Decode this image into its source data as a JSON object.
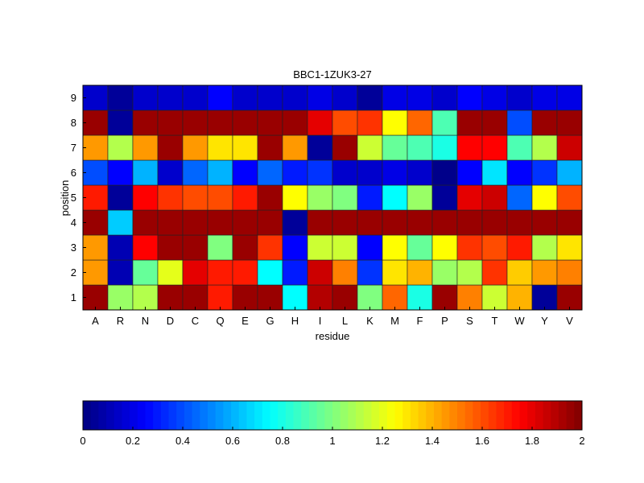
{
  "chart_data": {
    "type": "heatmap",
    "title": "BBC1-1ZUK3-27",
    "xlabel": "residue",
    "ylabel": "position",
    "x_categories": [
      "A",
      "R",
      "N",
      "D",
      "C",
      "Q",
      "E",
      "G",
      "H",
      "I",
      "L",
      "K",
      "M",
      "F",
      "P",
      "S",
      "T",
      "W",
      "Y",
      "V"
    ],
    "y_categories": [
      "1",
      "2",
      "3",
      "4",
      "5",
      "6",
      "7",
      "8",
      "9"
    ],
    "values": [
      [
        1.95,
        1.05,
        1.1,
        1.95,
        1.95,
        1.7,
        1.95,
        1.95,
        0.75,
        1.9,
        1.95,
        1.0,
        1.55,
        0.8,
        1.95,
        1.5,
        1.15,
        1.4,
        0.05,
        1.95
      ],
      [
        1.45,
        0.1,
        0.95,
        1.2,
        1.8,
        1.7,
        1.7,
        0.75,
        0.3,
        1.85,
        1.5,
        0.35,
        1.3,
        1.4,
        1.05,
        1.1,
        1.65,
        1.35,
        1.45,
        1.5
      ],
      [
        1.45,
        0.1,
        1.75,
        1.95,
        1.95,
        1.0,
        1.95,
        1.65,
        0.25,
        1.15,
        1.15,
        0.25,
        1.25,
        0.95,
        1.25,
        1.65,
        1.6,
        1.7,
        1.1,
        1.3
      ],
      [
        1.95,
        0.65,
        1.95,
        1.95,
        1.95,
        1.95,
        1.95,
        1.95,
        0.05,
        1.95,
        1.95,
        1.95,
        1.95,
        1.95,
        1.95,
        1.95,
        1.95,
        1.95,
        1.95,
        1.95
      ],
      [
        1.7,
        0.05,
        1.75,
        1.65,
        1.6,
        1.6,
        1.7,
        1.95,
        1.25,
        1.05,
        1.0,
        0.3,
        0.75,
        1.05,
        0.05,
        1.8,
        1.85,
        0.45,
        1.25,
        1.6
      ],
      [
        0.4,
        0.25,
        0.6,
        0.15,
        0.45,
        0.6,
        0.25,
        0.45,
        0.3,
        0.35,
        0.15,
        0.15,
        0.2,
        0.15,
        0.02,
        0.25,
        0.7,
        0.25,
        0.35,
        0.6
      ],
      [
        1.45,
        1.1,
        1.45,
        1.95,
        1.45,
        1.3,
        1.3,
        1.95,
        1.45,
        0.05,
        1.95,
        1.15,
        0.95,
        0.9,
        0.8,
        1.75,
        1.75,
        0.9,
        1.1,
        1.85
      ],
      [
        1.95,
        0.05,
        1.95,
        1.95,
        1.95,
        1.95,
        1.95,
        1.95,
        1.95,
        1.8,
        1.6,
        1.65,
        1.25,
        1.55,
        0.9,
        1.95,
        1.95,
        0.4,
        1.95,
        1.95
      ],
      [
        0.15,
        0.05,
        0.15,
        0.15,
        0.15,
        0.25,
        0.15,
        0.15,
        0.15,
        0.2,
        0.15,
        0.05,
        0.2,
        0.2,
        0.15,
        0.25,
        0.2,
        0.15,
        0.2,
        0.2
      ]
    ],
    "colorbar": {
      "min": 0,
      "max": 2,
      "ticks": [
        "0",
        "0.2",
        "0.4",
        "0.6",
        "0.8",
        "1",
        "1.2",
        "1.4",
        "1.6",
        "1.8",
        "2"
      ],
      "colormap": "jet",
      "placement": "bottom"
    }
  }
}
